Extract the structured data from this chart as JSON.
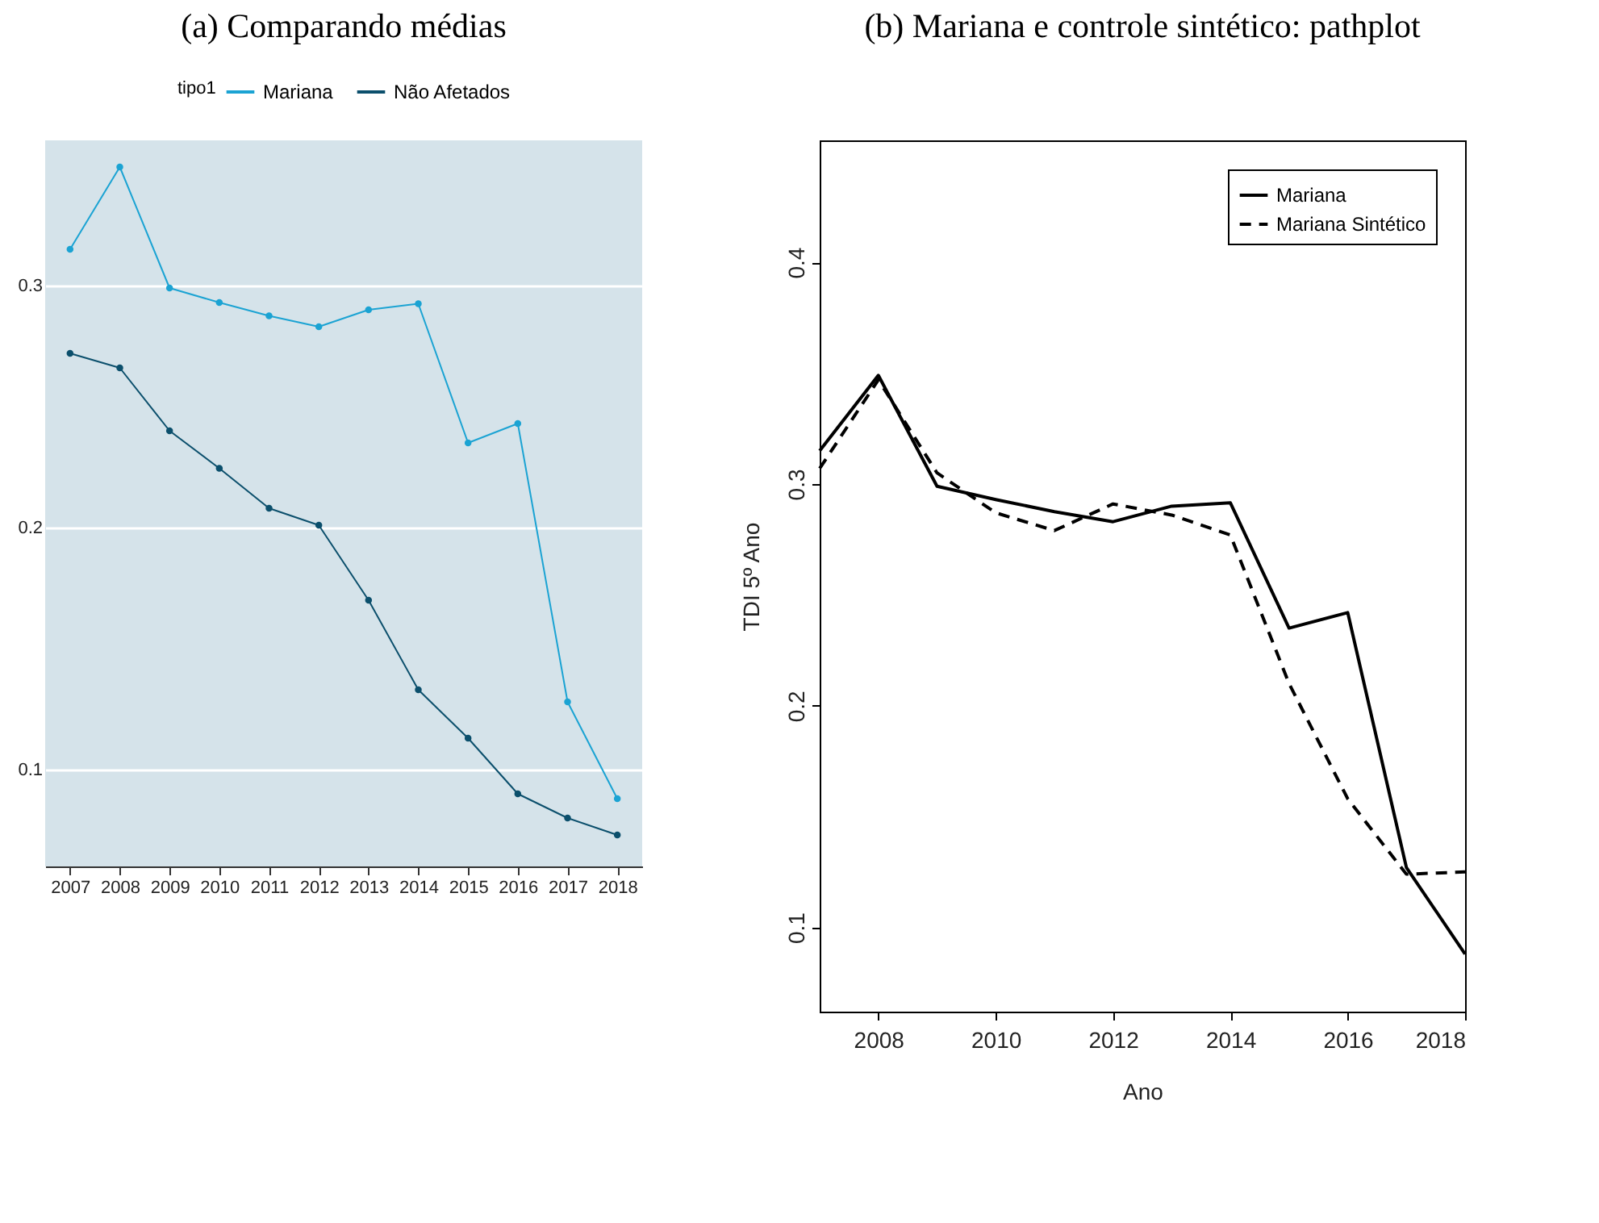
{
  "chart_data": [
    {
      "type": "line",
      "title": "(a) Comparando médias",
      "legend_title": "tipo1",
      "legend": "top",
      "marker": "circle",
      "grid": "y",
      "categories": [
        "2007",
        "2008",
        "2009",
        "2010",
        "2011",
        "2012",
        "2013",
        "2014",
        "2015",
        "2016",
        "2017",
        "2018"
      ],
      "series": [
        {
          "name": "Mariana",
          "color": "#1ba3d3",
          "values": [
            0.315,
            0.349,
            0.299,
            0.293,
            0.2875,
            0.283,
            0.29,
            0.2925,
            0.235,
            0.243,
            0.128,
            0.088
          ]
        },
        {
          "name": "Não Afetados",
          "color": "#0b4f6c",
          "values": [
            0.272,
            0.266,
            0.24,
            0.2245,
            0.208,
            0.201,
            0.17,
            0.133,
            0.113,
            0.09,
            0.08,
            0.073
          ]
        }
      ],
      "ylim": [
        0.06,
        0.36
      ],
      "yticks": [
        0.1,
        0.2,
        0.3
      ]
    },
    {
      "type": "line",
      "title": "(b) Mariana e controle sintético: pathplot",
      "xlabel": "Ano",
      "ylabel": "TDI 5º Ano",
      "legend": "top right",
      "x": [
        2007,
        2008,
        2009,
        2010,
        2011,
        2012,
        2013,
        2014,
        2015,
        2016,
        2017,
        2018
      ],
      "series": [
        {
          "name": "Mariana",
          "color": "#000000",
          "line_style": "solid",
          "values": [
            0.315,
            0.349,
            0.299,
            0.293,
            0.2875,
            0.283,
            0.29,
            0.2915,
            0.235,
            0.242,
            0.127,
            0.088
          ]
        },
        {
          "name": "Mariana Sintético",
          "color": "#000000",
          "line_style": "dashed",
          "values": [
            0.307,
            0.347,
            0.305,
            0.287,
            0.279,
            0.291,
            0.286,
            0.277,
            0.21,
            0.158,
            0.124,
            0.125
          ]
        }
      ],
      "xlim": [
        2007,
        2018
      ],
      "xticks": [
        2008,
        2010,
        2012,
        2014,
        2016,
        2018
      ],
      "ylim": [
        0.062,
        0.455
      ],
      "yticks": [
        0.1,
        0.2,
        0.3,
        0.4
      ]
    }
  ]
}
